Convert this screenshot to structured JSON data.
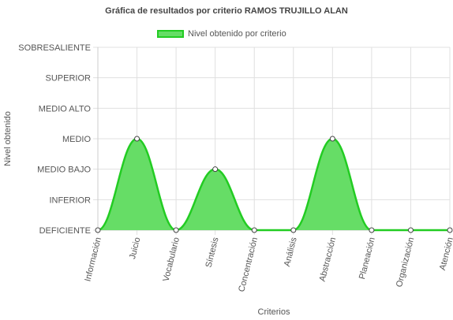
{
  "chart_data": {
    "type": "area",
    "title": "Gráfica de resultados por criterio RAMOS TRUJILLO ALAN",
    "xlabel": "Criterios",
    "ylabel": "Nivel obtenido",
    "categories": [
      "Información",
      "Juicio",
      "Vocabulario",
      "Síntesis",
      "Concentración",
      "Análisis",
      "Abstracción",
      "Planeación",
      "Organización",
      "Atención"
    ],
    "y_levels": [
      "DEFICIENTE",
      "INFERIOR",
      "MEDIO BAJO",
      "MEDIO",
      "MEDIO ALTO",
      "SUPERIOR",
      "SOBRESALIENTE"
    ],
    "series": [
      {
        "name": "Nivel obtenido por criterio",
        "values": [
          0,
          3,
          0,
          2,
          0,
          0,
          3,
          0,
          0,
          0
        ]
      }
    ],
    "ylim": [
      0,
      6
    ],
    "grid": true,
    "legend_position": "top",
    "colors": {
      "fill": "#66dd66",
      "line": "#22cc22",
      "grid": "#e0e0e0",
      "axis": "#cccccc"
    }
  }
}
